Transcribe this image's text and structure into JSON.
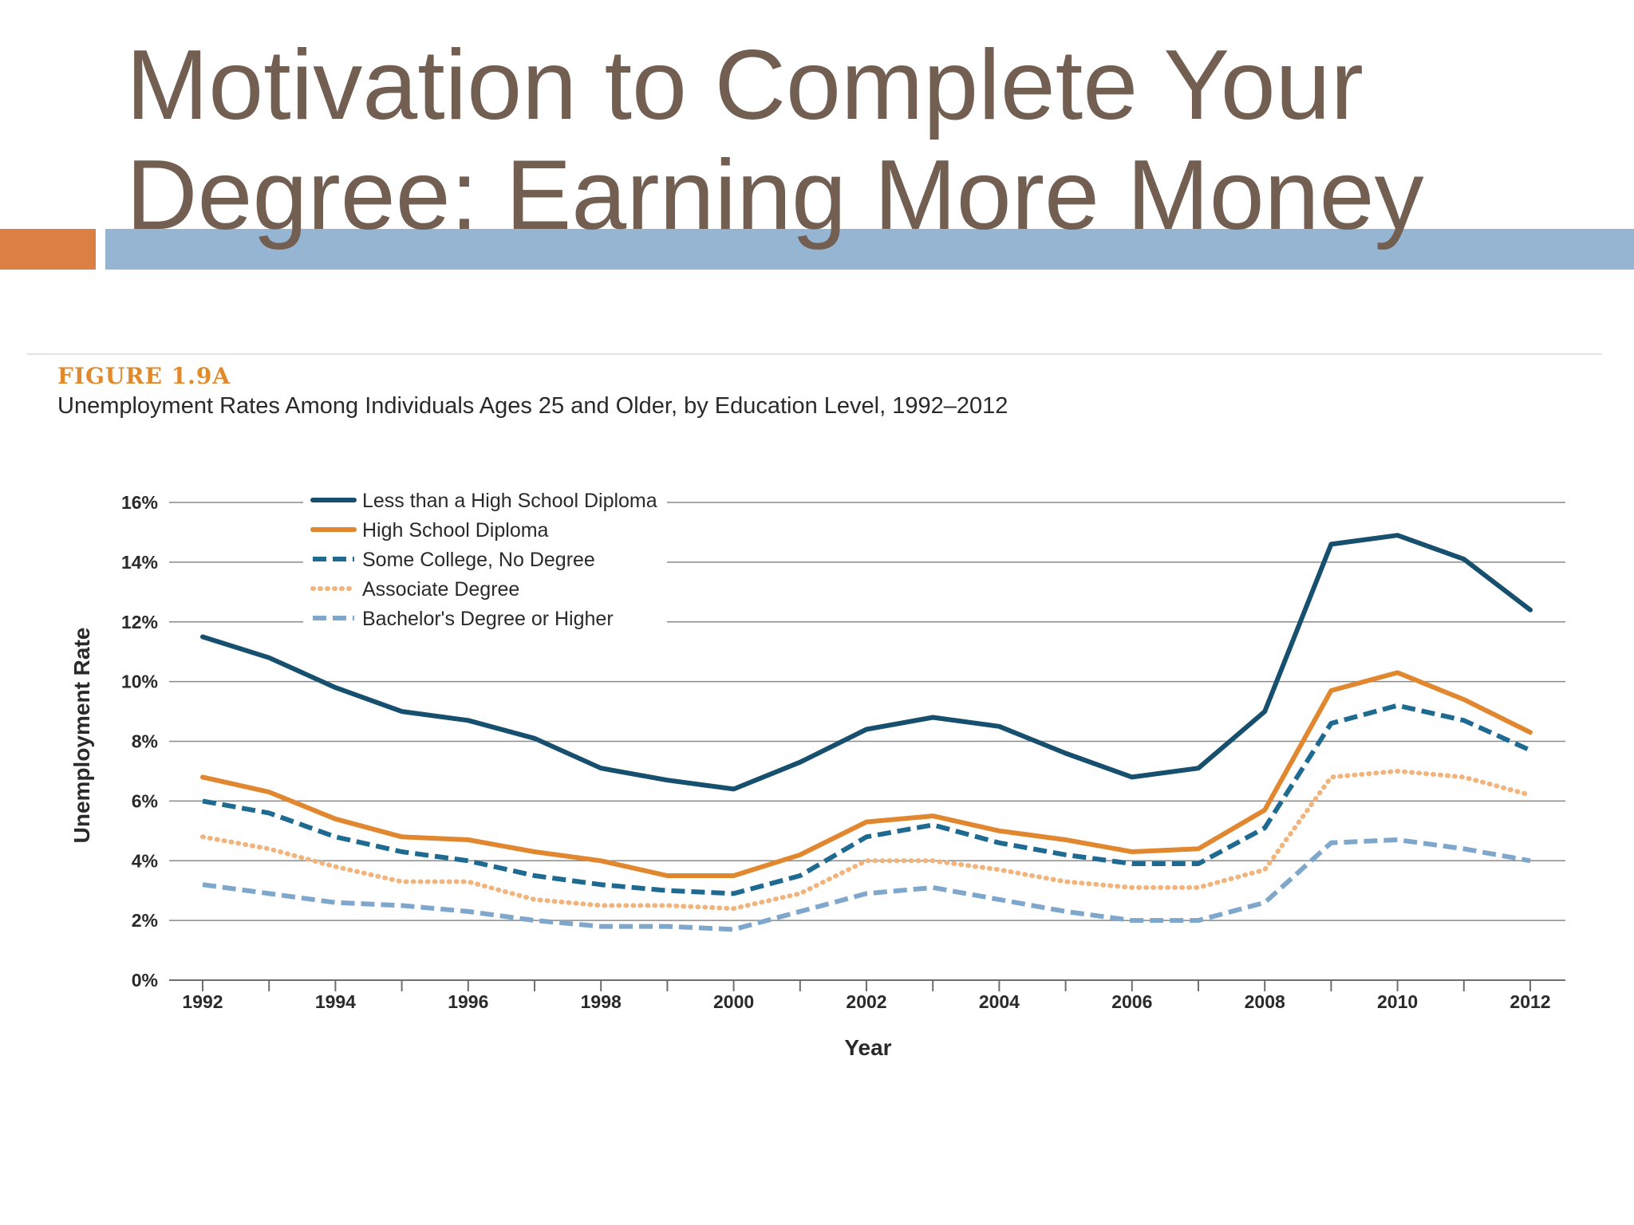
{
  "slide": {
    "title_line1": "Motivation to Complete Your",
    "title_line2": "Degree: Earning More Money"
  },
  "figure": {
    "label": "FIGURE 1.9A",
    "subtitle": "Unemployment Rates Among Individuals Ages 25 and Older, by Education Level, 1992–2012"
  },
  "colors": {
    "title_text": "#735f52",
    "accent_orange_bar": "#dc7f45",
    "accent_blue_bar": "#95b5d2",
    "figure_label": "#e08a2b"
  },
  "chart_data": {
    "type": "line",
    "title": "Unemployment Rates Among Individuals Ages 25 and Older, by Education Level, 1992–2012",
    "xlabel": "Year",
    "ylabel": "Unemployment Rate",
    "xlim": [
      1992,
      2012
    ],
    "ylim": [
      0,
      16
    ],
    "x": [
      1992,
      1993,
      1994,
      1995,
      1996,
      1997,
      1998,
      1999,
      2000,
      2001,
      2002,
      2003,
      2004,
      2005,
      2006,
      2007,
      2008,
      2009,
      2010,
      2011,
      2012
    ],
    "x_ticks": [
      1992,
      1993,
      1994,
      1995,
      1996,
      1997,
      1998,
      1999,
      2000,
      2001,
      2002,
      2003,
      2004,
      2005,
      2006,
      2007,
      2008,
      2009,
      2010,
      2011,
      2012
    ],
    "x_tick_labels": [
      {
        "value": 1992,
        "label": "1992"
      },
      {
        "value": 1994,
        "label": "1994"
      },
      {
        "value": 1996,
        "label": "1996"
      },
      {
        "value": 1998,
        "label": "1998"
      },
      {
        "value": 2000,
        "label": "2000"
      },
      {
        "value": 2002,
        "label": "2002"
      },
      {
        "value": 2004,
        "label": "2004"
      },
      {
        "value": 2006,
        "label": "2006"
      },
      {
        "value": 2008,
        "label": "2008"
      },
      {
        "value": 2010,
        "label": "2010"
      },
      {
        "value": 2012,
        "label": "2012"
      }
    ],
    "y_ticks": [
      {
        "value": 0,
        "label": "0%"
      },
      {
        "value": 2,
        "label": "2%"
      },
      {
        "value": 4,
        "label": "4%"
      },
      {
        "value": 6,
        "label": "6%"
      },
      {
        "value": 8,
        "label": "8%"
      },
      {
        "value": 10,
        "label": "10%"
      },
      {
        "value": 12,
        "label": "12%"
      },
      {
        "value": 14,
        "label": "14%"
      },
      {
        "value": 16,
        "label": "16%"
      }
    ],
    "grid": "horizontal",
    "legend_position": "top-left",
    "series": [
      {
        "name": "Less than a High School Diploma",
        "style": "solid",
        "color": "#17506e",
        "values": [
          11.5,
          10.8,
          9.8,
          9.0,
          8.7,
          8.1,
          7.1,
          6.7,
          6.4,
          7.3,
          8.4,
          8.8,
          8.5,
          7.6,
          6.8,
          7.1,
          9.0,
          14.6,
          14.9,
          14.1,
          12.4
        ]
      },
      {
        "name": "High School Diploma",
        "style": "solid",
        "color": "#e0872f",
        "values": [
          6.8,
          6.3,
          5.4,
          4.8,
          4.7,
          4.3,
          4.0,
          3.5,
          3.5,
          4.2,
          5.3,
          5.5,
          5.0,
          4.7,
          4.3,
          4.4,
          5.7,
          9.7,
          10.3,
          9.4,
          8.3
        ]
      },
      {
        "name": "Some College, No Degree",
        "style": "dashed",
        "color": "#1e6a91",
        "values": [
          6.0,
          5.6,
          4.8,
          4.3,
          4.0,
          3.5,
          3.2,
          3.0,
          2.9,
          3.5,
          4.8,
          5.2,
          4.6,
          4.2,
          3.9,
          3.9,
          5.1,
          8.6,
          9.2,
          8.7,
          7.7
        ]
      },
      {
        "name": "Associate Degree",
        "style": "dotted",
        "color": "#f1b47c",
        "values": [
          4.8,
          4.4,
          3.8,
          3.3,
          3.3,
          2.7,
          2.5,
          2.5,
          2.4,
          2.9,
          4.0,
          4.0,
          3.7,
          3.3,
          3.1,
          3.1,
          3.7,
          6.8,
          7.0,
          6.8,
          6.2
        ]
      },
      {
        "name": "Bachelor's Degree or Higher",
        "style": "dashed",
        "color": "#7fa7cc",
        "values": [
          3.2,
          2.9,
          2.6,
          2.5,
          2.3,
          2.0,
          1.8,
          1.8,
          1.7,
          2.3,
          2.9,
          3.1,
          2.7,
          2.3,
          2.0,
          2.0,
          2.6,
          4.6,
          4.7,
          4.4,
          4.0
        ]
      }
    ]
  }
}
